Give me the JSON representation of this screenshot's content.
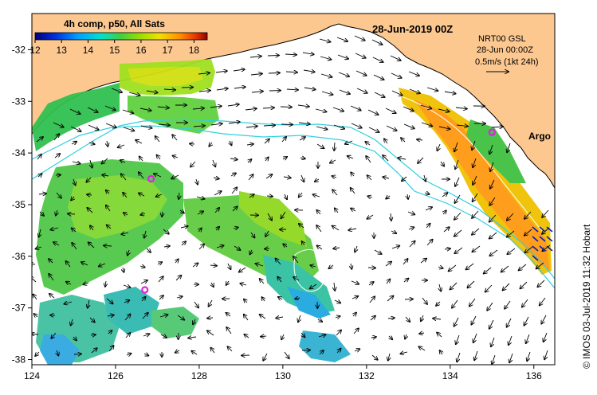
{
  "map": {
    "date_title": "28-Jun-2019 00Z",
    "colorbar_title": "4h comp, p50, All Sats",
    "colorbar_ticks": [
      "12",
      "13",
      "14",
      "15",
      "16",
      "17",
      "18"
    ],
    "colorbar_range": [
      12,
      18.5
    ],
    "colorbar_colors": [
      "#000080",
      "#0030e0",
      "#00a0ff",
      "#00e0d0",
      "#40d040",
      "#a0e000",
      "#f0e000",
      "#ff9000",
      "#e03000",
      "#900000"
    ],
    "info_line1": "NRT00 GSL",
    "info_line2": "28-Jun 00:00Z",
    "info_line3": "0.5m/s (1kt 24h)",
    "argo_label": "Argo",
    "credit": "© IMOS 03-Jul-2019 11:32 Hobart",
    "lon_ticks": [
      "124",
      "126",
      "128",
      "130",
      "132",
      "134",
      "136"
    ],
    "lat_ticks": [
      "-32",
      "-33",
      "-34",
      "-35",
      "-36",
      "-37",
      "-38"
    ],
    "lon_range": [
      124,
      136.5
    ],
    "lat_range": [
      -38.1,
      -31.3
    ],
    "land_color": "#fcc890",
    "contour_color": "#30d0e0",
    "argo_color": "#e020e0",
    "argo_floats": [
      {
        "lon": 135.0,
        "lat": -33.6
      },
      {
        "lon": 126.85,
        "lat": -34.5
      },
      {
        "lon": 126.7,
        "lat": -36.65
      }
    ]
  }
}
